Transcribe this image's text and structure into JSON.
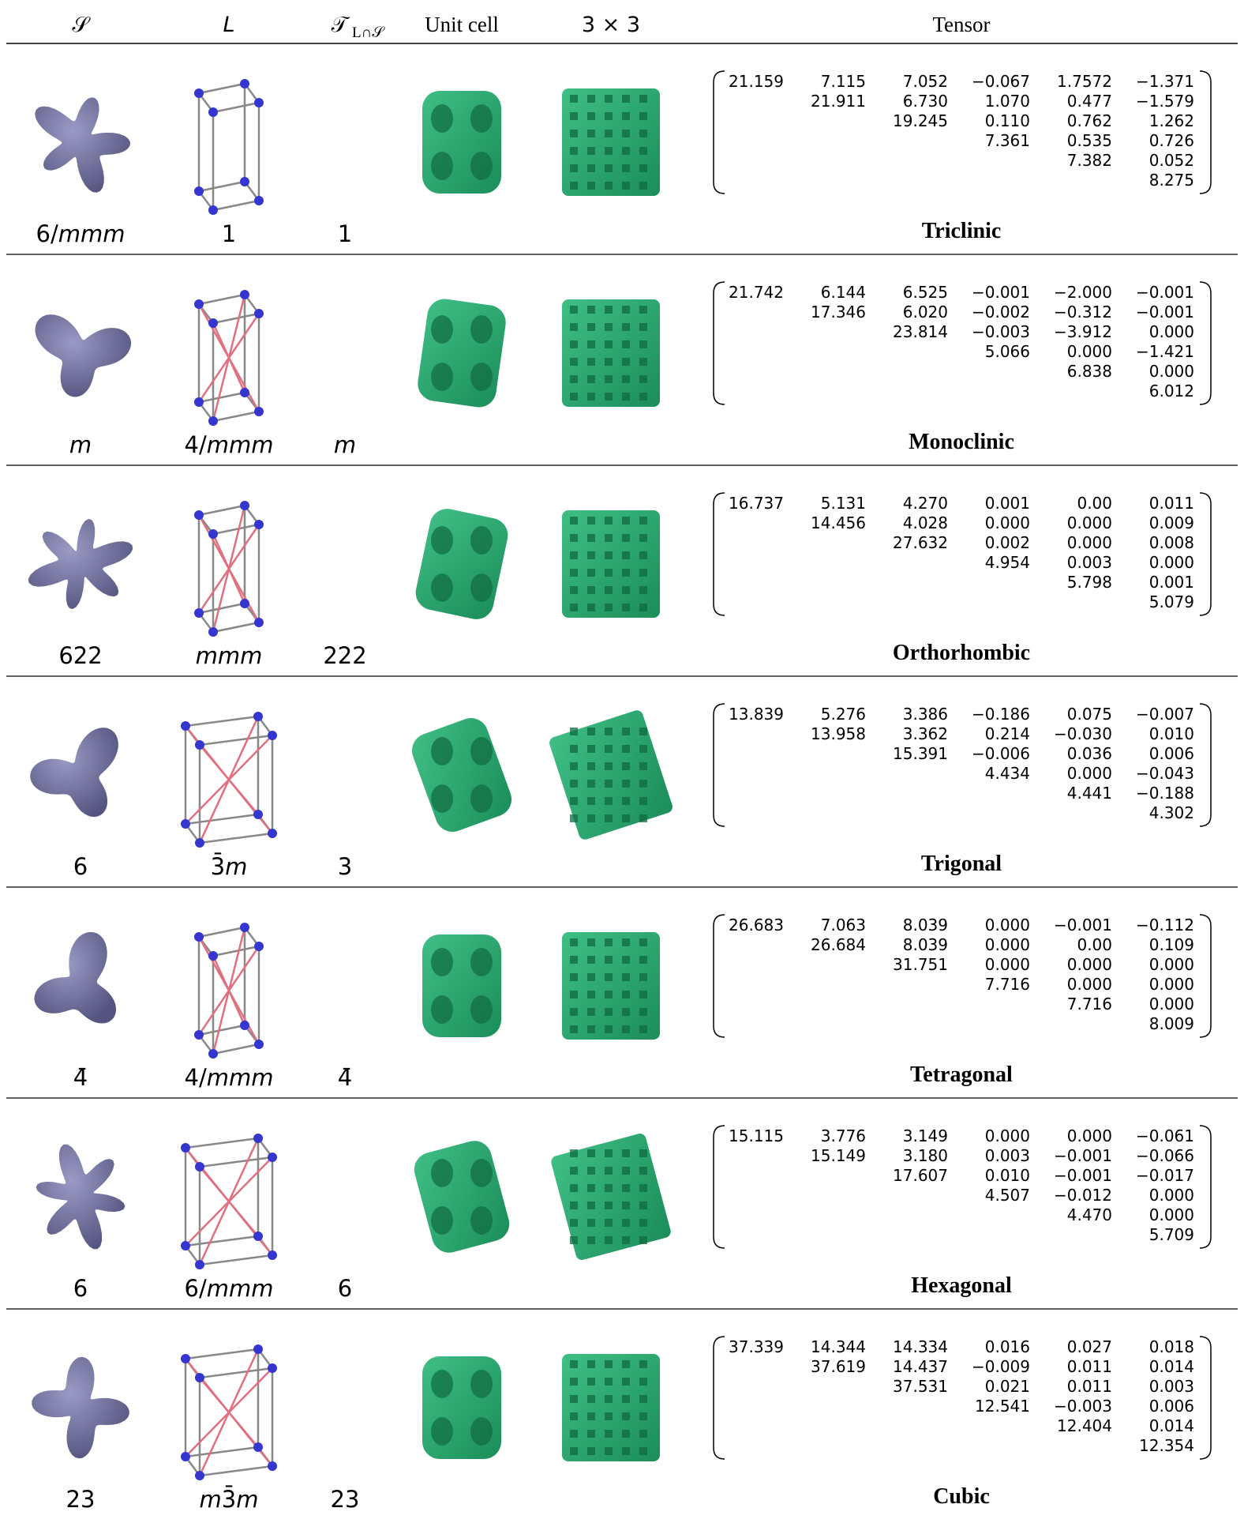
{
  "header": {
    "s": "𝒮",
    "l": "L",
    "t": "𝒯",
    "t_sub": "L∩𝒮",
    "unit_cell": "Unit cell",
    "grid": "3 × 3",
    "tensor": "Tensor"
  },
  "rows": [
    {
      "s": "6/mmm",
      "l": "1",
      "t": "1",
      "system": "Triclinic",
      "tensor": [
        [
          "21.159",
          "7.115",
          "7.052",
          "−0.067",
          "1.7572",
          "−1.371"
        ],
        [
          "21.911",
          "6.730",
          "1.070",
          "0.477",
          "−1.579"
        ],
        [
          "19.245",
          "0.110",
          "0.762",
          "1.262"
        ],
        [
          "7.361",
          "0.535",
          "0.726"
        ],
        [
          "7.382",
          "0.052"
        ],
        [
          "8.275"
        ]
      ]
    },
    {
      "s": "m",
      "l": "4/mmm",
      "t": "m",
      "system": "Monoclinic",
      "tensor": [
        [
          "21.742",
          "6.144",
          "6.525",
          "−0.001",
          "−2.000",
          "−0.001"
        ],
        [
          "17.346",
          "6.020",
          "−0.002",
          "−0.312",
          "−0.001"
        ],
        [
          "23.814",
          "−0.003",
          "−3.912",
          "0.000"
        ],
        [
          "5.066",
          "0.000",
          "−1.421"
        ],
        [
          "6.838",
          "0.000"
        ],
        [
          "6.012"
        ]
      ]
    },
    {
      "s": "622",
      "l": "mmm",
      "t": "222",
      "system": "Orthorhombic",
      "tensor": [
        [
          "16.737",
          "5.131",
          "4.270",
          "0.001",
          "0.00",
          "0.011"
        ],
        [
          "14.456",
          "4.028",
          "0.000",
          "0.000",
          "0.009"
        ],
        [
          "27.632",
          "0.002",
          "0.000",
          "0.008"
        ],
        [
          "4.954",
          "0.003",
          "0.000"
        ],
        [
          "5.798",
          "0.001"
        ],
        [
          "5.079"
        ]
      ]
    },
    {
      "s": "6",
      "l": "3̄m",
      "t": "3",
      "system": "Trigonal",
      "tensor": [
        [
          "13.839",
          "5.276",
          "3.386",
          "−0.186",
          "0.075",
          "−0.007"
        ],
        [
          "13.958",
          "3.362",
          "0.214",
          "−0.030",
          "0.010"
        ],
        [
          "15.391",
          "−0.006",
          "0.036",
          "0.006"
        ],
        [
          "4.434",
          "0.000",
          "−0.043"
        ],
        [
          "4.441",
          "−0.188"
        ],
        [
          "4.302"
        ]
      ]
    },
    {
      "s": "4̄",
      "l": "4/mmm",
      "t": "4̄",
      "system": "Tetragonal",
      "tensor": [
        [
          "26.683",
          "7.063",
          "8.039",
          "0.000",
          "−0.001",
          "−0.112"
        ],
        [
          "26.684",
          "8.039",
          "0.000",
          "0.00",
          "0.109"
        ],
        [
          "31.751",
          "0.000",
          "0.000",
          "0.000"
        ],
        [
          "7.716",
          "0.000",
          "0.000"
        ],
        [
          "7.716",
          "0.000"
        ],
        [
          "8.009"
        ]
      ]
    },
    {
      "s": "6",
      "l": "6/mmm",
      "t": "6",
      "system": "Hexagonal",
      "tensor": [
        [
          "15.115",
          "3.776",
          "3.149",
          "0.000",
          "0.000",
          "−0.061"
        ],
        [
          "15.149",
          "3.180",
          "0.003",
          "−0.001",
          "−0.066"
        ],
        [
          "17.607",
          "0.010",
          "−0.001",
          "−0.017"
        ],
        [
          "4.507",
          "−0.012",
          "0.000"
        ],
        [
          "4.470",
          "0.000"
        ],
        [
          "5.709"
        ]
      ]
    },
    {
      "s": "23",
      "l": "m3̄m",
      "t": "23",
      "system": "Cubic",
      "tensor": [
        [
          "37.339",
          "14.344",
          "14.334",
          "0.016",
          "0.027",
          "0.018"
        ],
        [
          "37.619",
          "14.437",
          "−0.009",
          "0.011",
          "0.014"
        ],
        [
          "37.531",
          "0.021",
          "0.011",
          "0.003"
        ],
        [
          "12.541",
          "−0.003",
          "0.006"
        ],
        [
          "12.404",
          "0.014"
        ],
        [
          "12.354"
        ]
      ]
    }
  ]
}
